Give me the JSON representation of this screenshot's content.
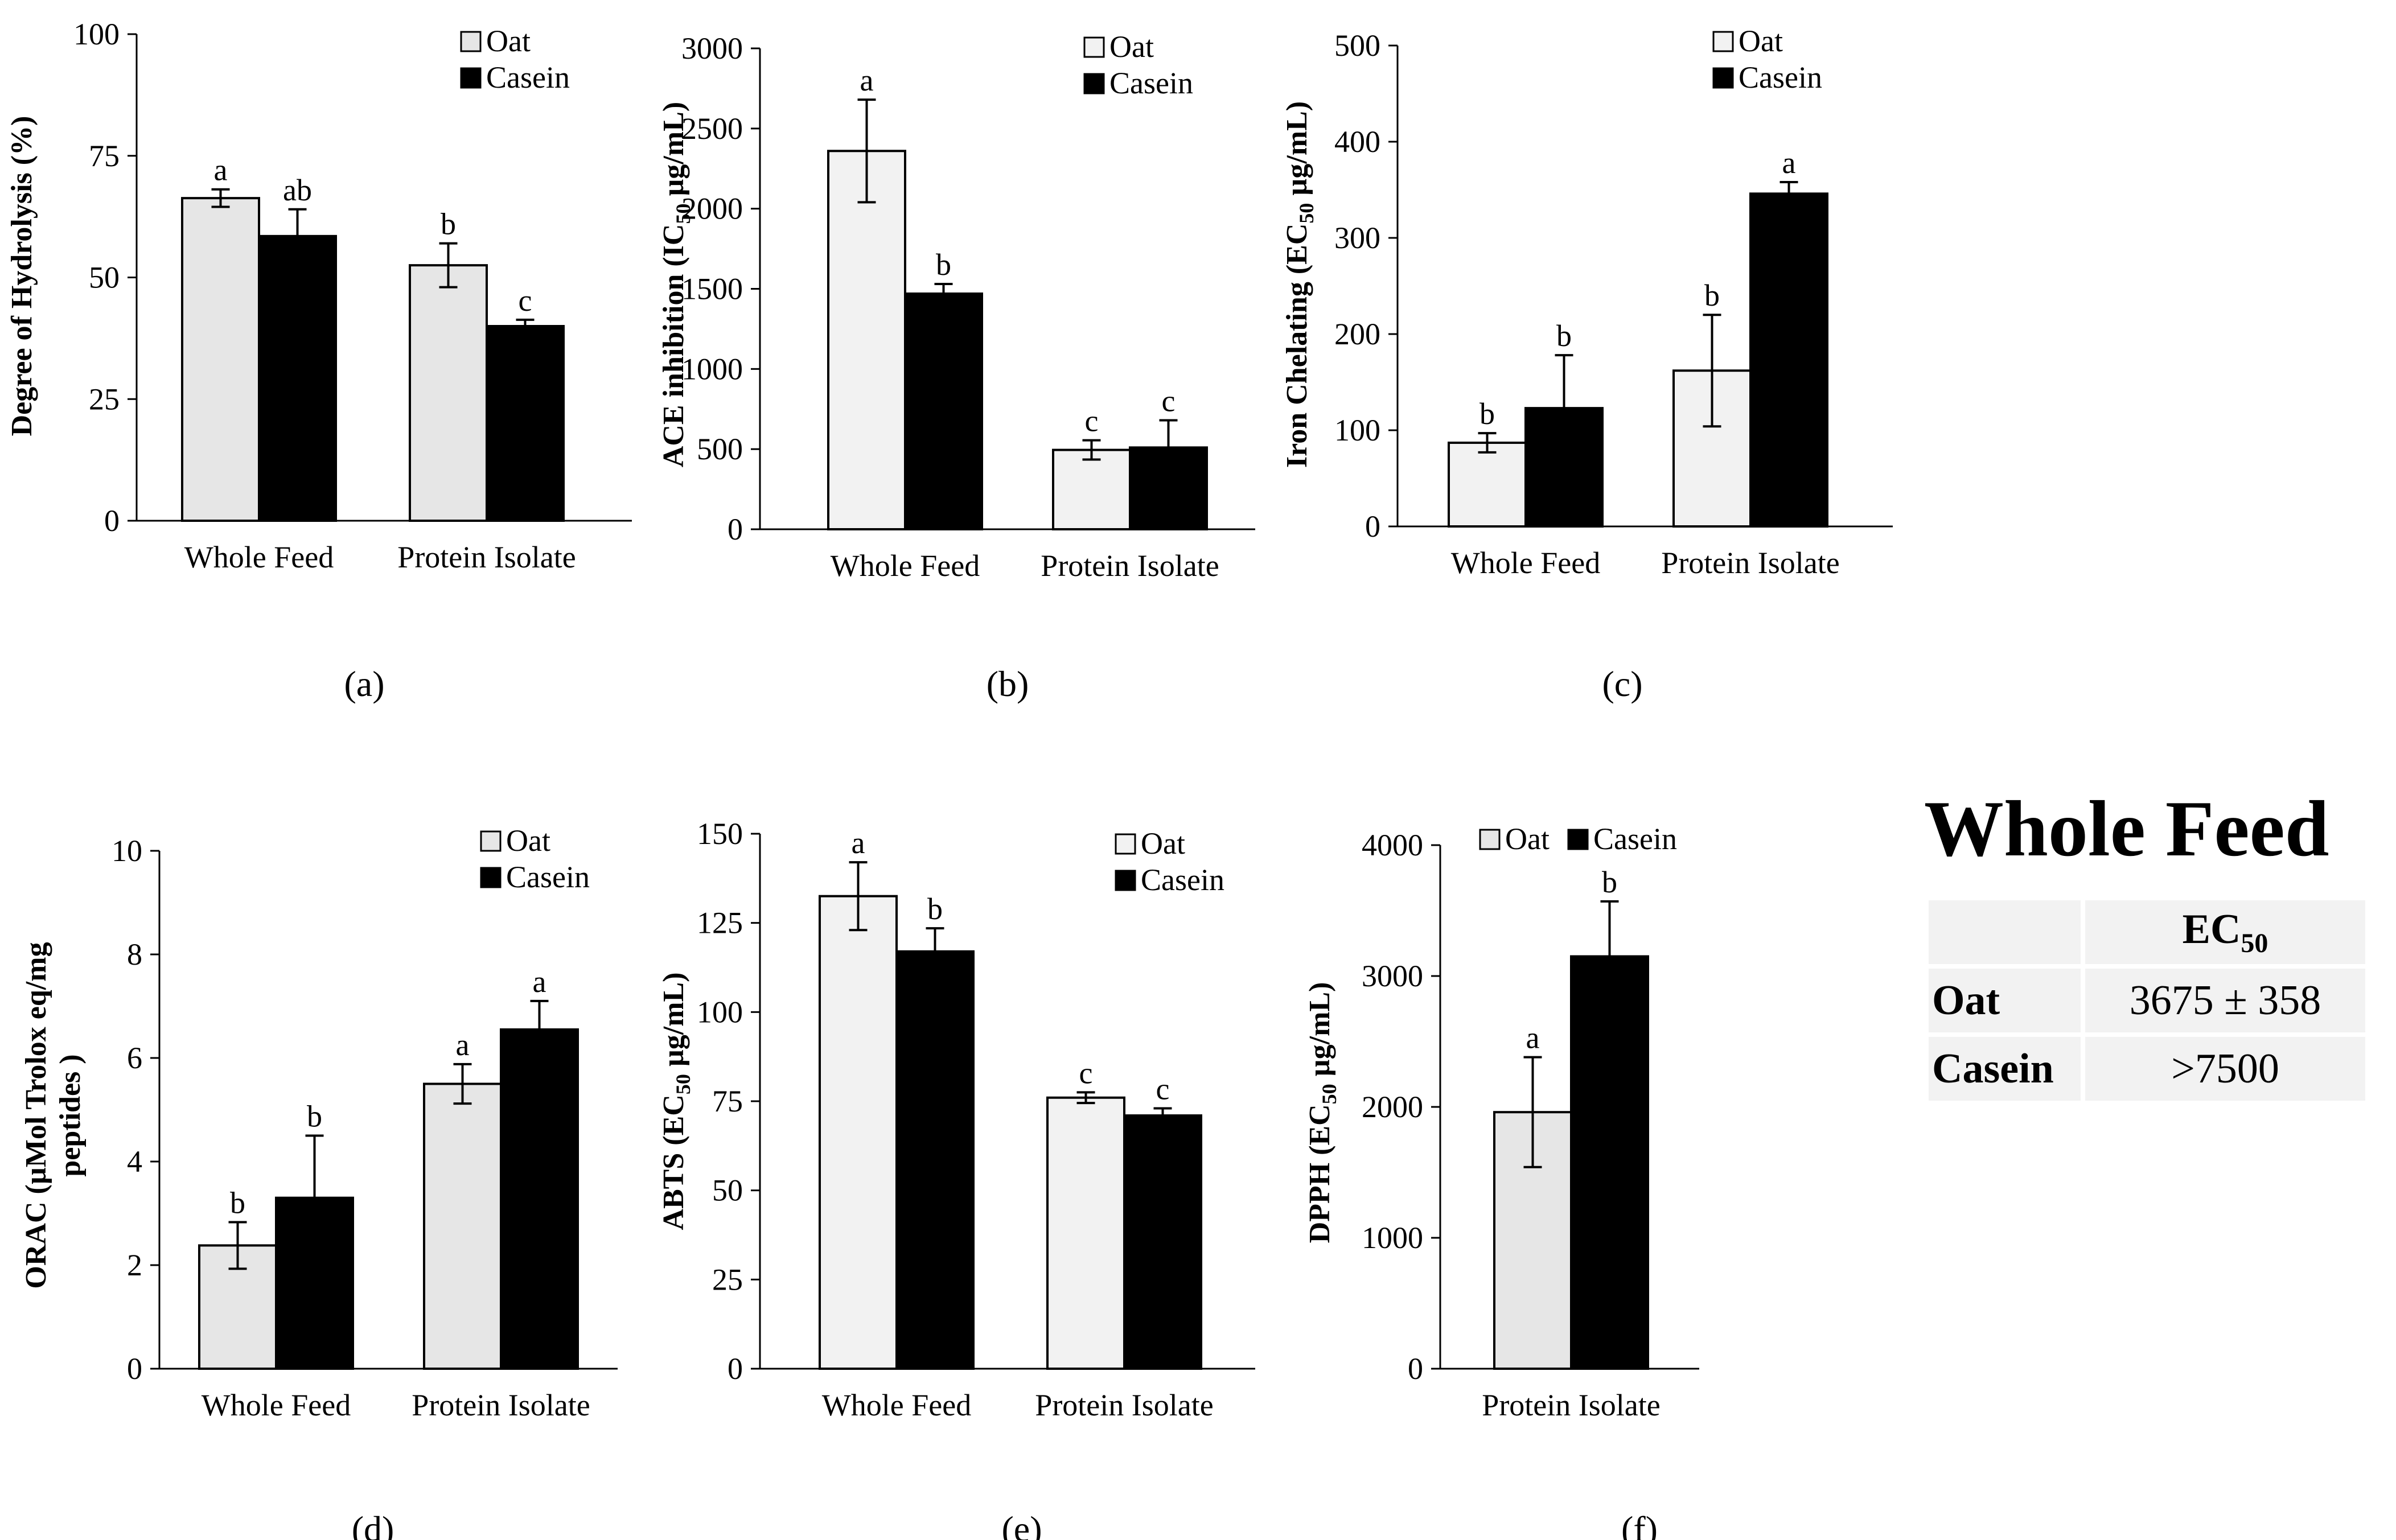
{
  "chart_data": [
    {
      "id": "a",
      "type": "bar",
      "panel_label": "(a)",
      "ylabel": "Degree of Hydrolysis (%)",
      "ylabel_sub": "",
      "ylabel_suffix": "",
      "ylim": [
        0,
        100
      ],
      "yticks": [
        0,
        25,
        50,
        75,
        100
      ],
      "categories": [
        "Whole Feed",
        "Protein Isolate"
      ],
      "series": [
        {
          "name": "Oat",
          "color": "#e6e6e6",
          "values": [
            66.3,
            52.5
          ],
          "errors": [
            1.8,
            4.5
          ],
          "letters": [
            "a",
            "b"
          ]
        },
        {
          "name": "Casein",
          "color": "#000000",
          "values": [
            58.5,
            40.0
          ],
          "errors": [
            5.5,
            1.3
          ],
          "letters": [
            "ab",
            "c"
          ]
        }
      ],
      "legend": [
        "Oat",
        "Casein"
      ]
    },
    {
      "id": "b",
      "type": "bar",
      "panel_label": "(b)",
      "ylabel": "ACE inhibition (IC",
      "ylabel_sub": "50",
      "ylabel_suffix": " µg/mL)",
      "ylim": [
        0,
        3000
      ],
      "yticks": [
        0,
        500,
        1000,
        1500,
        2000,
        2500,
        3000
      ],
      "categories": [
        "Whole Feed",
        "Protein Isolate"
      ],
      "series": [
        {
          "name": "Oat",
          "color": "#f2f2f2",
          "values": [
            2360,
            495
          ],
          "errors": [
            320,
            60
          ],
          "letters": [
            "a",
            "c"
          ]
        },
        {
          "name": "Casein",
          "color": "#000000",
          "values": [
            1470,
            510
          ],
          "errors": [
            60,
            170
          ],
          "letters": [
            "b",
            "c"
          ]
        }
      ],
      "legend": [
        "Oat",
        "Casein"
      ]
    },
    {
      "id": "c",
      "type": "bar",
      "panel_label": "(c)",
      "ylabel": "Iron Chelating (EC",
      "ylabel_sub": "50",
      "ylabel_suffix": " µg/mL)",
      "ylim": [
        0,
        500
      ],
      "yticks": [
        0,
        100,
        200,
        300,
        400,
        500
      ],
      "categories": [
        "Whole Feed",
        "Protein Isolate"
      ],
      "series": [
        {
          "name": "Oat",
          "color": "#f2f2f2",
          "values": [
            87,
            162
          ],
          "errors": [
            10,
            58
          ],
          "letters": [
            "b",
            "b"
          ]
        },
        {
          "name": "Casein",
          "color": "#000000",
          "values": [
            123,
            346
          ],
          "errors": [
            55,
            12
          ],
          "letters": [
            "b",
            "a"
          ]
        }
      ],
      "legend": [
        "Oat",
        "Casein"
      ]
    },
    {
      "id": "d",
      "type": "bar",
      "panel_label": "(d)",
      "ylabel": "ORAC (µMol Trolox eq/mg",
      "ylabel2": "peptides )",
      "ylabel_sub": "",
      "ylabel_suffix": "",
      "ylim": [
        0,
        10
      ],
      "yticks": [
        0,
        2,
        4,
        6,
        8,
        10
      ],
      "categories": [
        "Whole Feed",
        "Protein Isolate"
      ],
      "series": [
        {
          "name": "Oat",
          "color": "#e6e6e6",
          "values": [
            2.38,
            5.5
          ],
          "errors": [
            0.45,
            0.38
          ],
          "letters": [
            "b",
            "a"
          ]
        },
        {
          "name": "Casein",
          "color": "#000000",
          "values": [
            3.3,
            6.55
          ],
          "errors": [
            1.2,
            0.55
          ],
          "letters": [
            "b",
            "a"
          ]
        }
      ],
      "legend": [
        "Oat",
        "Casein"
      ]
    },
    {
      "id": "e",
      "type": "bar",
      "panel_label": "(e)",
      "ylabel": "ABTS (EC",
      "ylabel_sub": "50",
      "ylabel_suffix": " µg/mL)",
      "ylim": [
        0,
        150
      ],
      "yticks": [
        0,
        25,
        50,
        75,
        100,
        125,
        150
      ],
      "categories": [
        "Whole Feed",
        "Protein Isolate"
      ],
      "series": [
        {
          "name": "Oat",
          "color": "#f2f2f2",
          "values": [
            132.5,
            76
          ],
          "errors": [
            9.5,
            1.5
          ],
          "letters": [
            "a",
            "c"
          ]
        },
        {
          "name": "Casein",
          "color": "#000000",
          "values": [
            117,
            71
          ],
          "errors": [
            6.5,
            2
          ],
          "letters": [
            "b",
            "c"
          ]
        }
      ],
      "legend": [
        "Oat",
        "Casein"
      ]
    },
    {
      "id": "f",
      "type": "bar",
      "panel_label": "(f)",
      "ylabel": "DPPH (EC",
      "ylabel_sub": "50",
      "ylabel_suffix": " µg/mL)",
      "ylim": [
        0,
        4000
      ],
      "yticks": [
        0,
        1000,
        2000,
        3000,
        4000
      ],
      "categories": [
        "Protein Isolate"
      ],
      "series": [
        {
          "name": "Oat",
          "color": "#e6e6e6",
          "values": [
            1960
          ],
          "errors": [
            420
          ],
          "letters": [
            "a"
          ]
        },
        {
          "name": "Casein",
          "color": "#000000",
          "values": [
            3150
          ],
          "errors": [
            420
          ],
          "letters": [
            "b"
          ]
        }
      ],
      "legend": [
        "Oat",
        "Casein"
      ]
    }
  ],
  "whole_feed_table": {
    "title": "Whole Feed",
    "header": {
      "prefix": "EC",
      "sub": "50"
    },
    "rows": [
      {
        "label": "Oat",
        "value": "3675 ± 358"
      },
      {
        "label": "Casein",
        "value": ">7500"
      }
    ]
  }
}
